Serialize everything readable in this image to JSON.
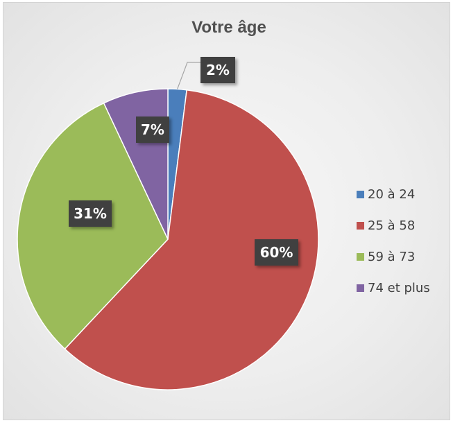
{
  "chart_data": {
    "type": "pie",
    "title": "Votre âge",
    "categories": [
      "20 à 24",
      "25 à 58",
      "59 à 73",
      "74 et plus"
    ],
    "values": [
      2,
      60,
      31,
      7
    ],
    "labels": [
      "2%",
      "60%",
      "31%",
      "7%"
    ],
    "colors": [
      "#4a7ebb",
      "#c0504d",
      "#9bbb59",
      "#8064a2"
    ],
    "legend": "right"
  }
}
